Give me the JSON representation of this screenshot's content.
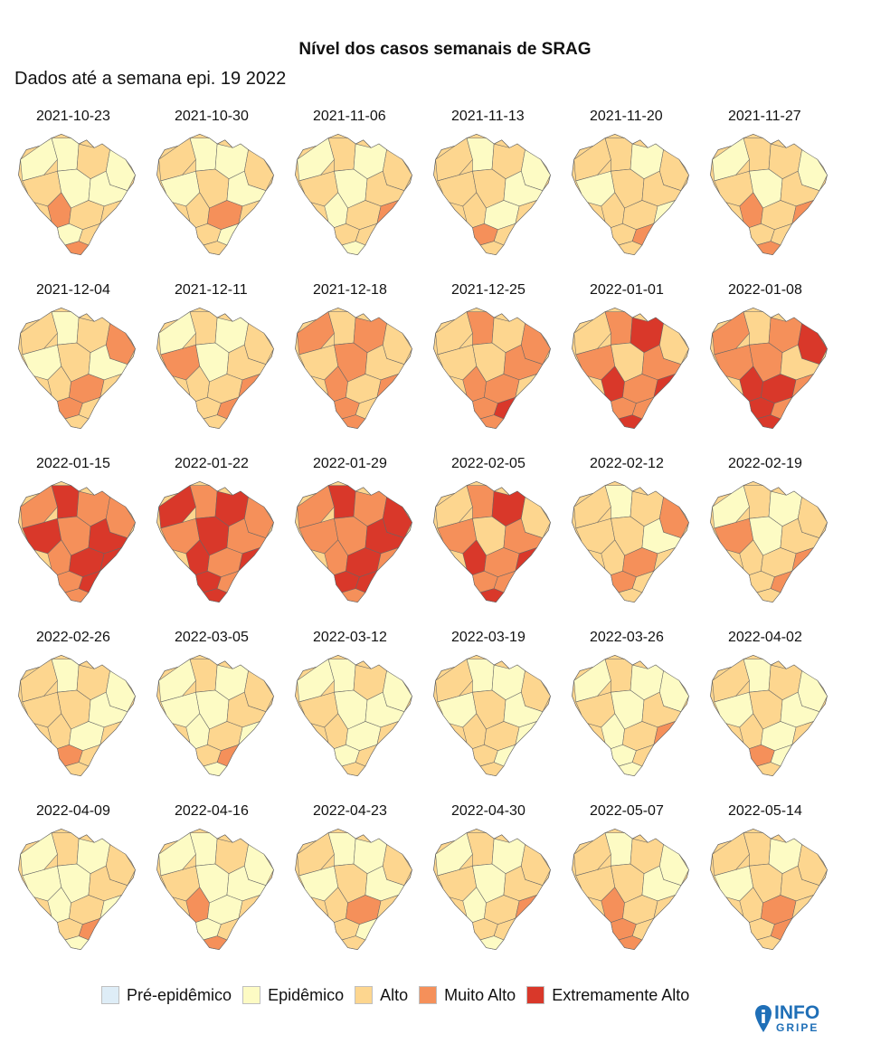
{
  "title": "Nível dos casos semanais de SRAG",
  "subtitle": "Dados até a semana epi. 19 2022",
  "levels": [
    {
      "key": "pre",
      "label": "Pré-epidêmico",
      "color": "#deedf7"
    },
    {
      "key": "epi",
      "label": "Epidêmico",
      "color": "#fdfbc4"
    },
    {
      "key": "alto",
      "label": "Alto",
      "color": "#fdd68f"
    },
    {
      "key": "muito",
      "label": "Muito Alto",
      "color": "#f5905a"
    },
    {
      "key": "ext",
      "label": "Extremamente Alto",
      "color": "#d9382a"
    }
  ],
  "panels": [
    {
      "date": "2021-10-23"
    },
    {
      "date": "2021-10-30"
    },
    {
      "date": "2021-11-06"
    },
    {
      "date": "2021-11-13"
    },
    {
      "date": "2021-11-20"
    },
    {
      "date": "2021-11-27"
    },
    {
      "date": "2021-12-04"
    },
    {
      "date": "2021-12-11"
    },
    {
      "date": "2021-12-18"
    },
    {
      "date": "2021-12-25"
    },
    {
      "date": "2022-01-01"
    },
    {
      "date": "2022-01-08"
    },
    {
      "date": "2022-01-15"
    },
    {
      "date": "2022-01-22"
    },
    {
      "date": "2022-01-29"
    },
    {
      "date": "2022-02-05"
    },
    {
      "date": "2022-02-12"
    },
    {
      "date": "2022-02-19"
    },
    {
      "date": "2022-02-26"
    },
    {
      "date": "2022-03-05"
    },
    {
      "date": "2022-03-12"
    },
    {
      "date": "2022-03-19"
    },
    {
      "date": "2022-03-26"
    },
    {
      "date": "2022-04-02"
    },
    {
      "date": "2022-04-09"
    },
    {
      "date": "2022-04-16"
    },
    {
      "date": "2022-04-23"
    },
    {
      "date": "2022-04-30"
    },
    {
      "date": "2022-05-07"
    },
    {
      "date": "2022-05-14"
    }
  ],
  "logo": {
    "line1": "INFO",
    "line2": "GRIPE",
    "color": "#1f6fb7"
  }
}
